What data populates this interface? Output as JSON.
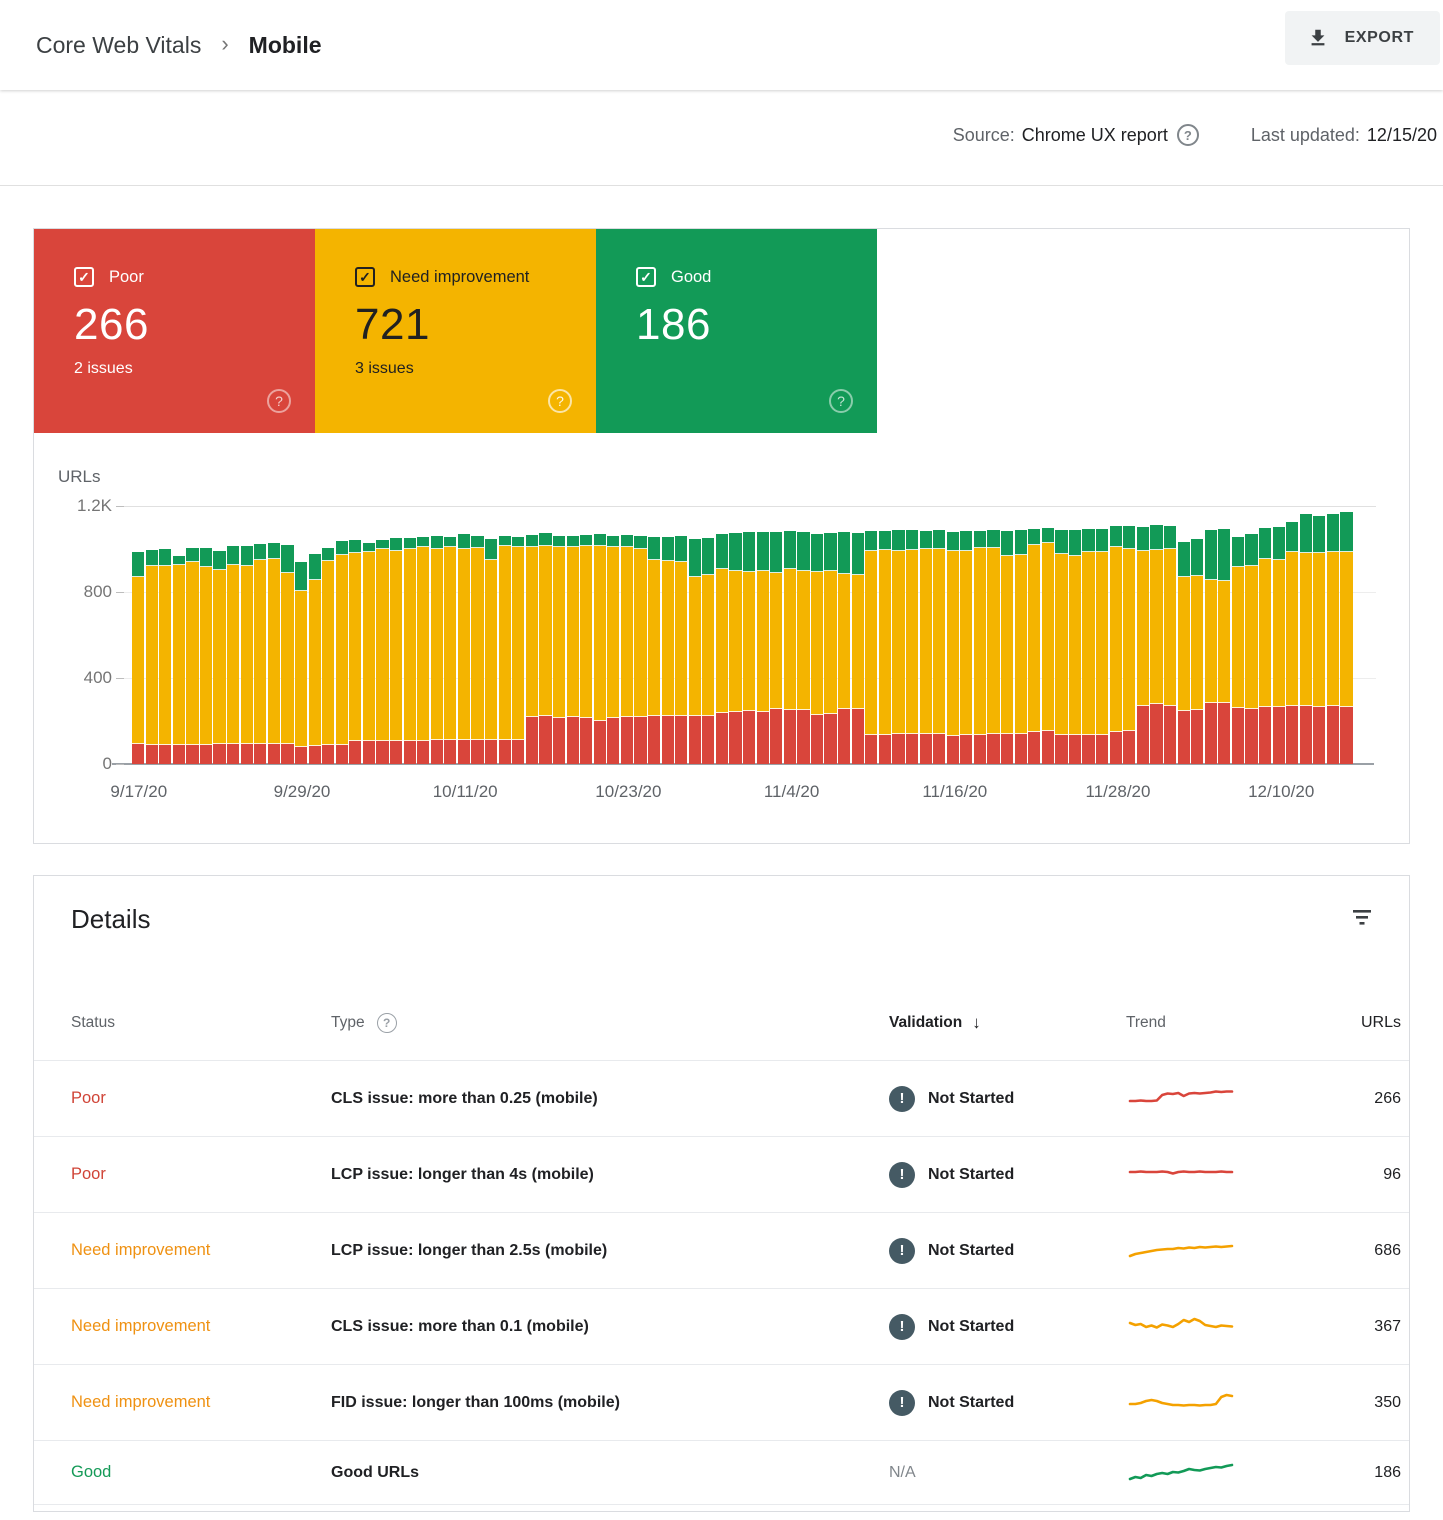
{
  "header": {
    "breadcrumb_root": "Core Web Vitals",
    "breadcrumb_separator": "›",
    "breadcrumb_current": "Mobile",
    "export_label": "EXPORT"
  },
  "meta": {
    "source_label": "Source:",
    "source_value": "Chrome UX report",
    "last_updated_label": "Last updated:",
    "last_updated_value": "12/15/20"
  },
  "summary_cards": [
    {
      "id": "poor",
      "label": "Poor",
      "count": "266",
      "issues": "2 issues",
      "checkbox": "✓",
      "help": "?",
      "color": "#d9453b",
      "text_color": "#ffffff"
    },
    {
      "id": "need_improvement",
      "label": "Need improvement",
      "count": "721",
      "issues": "3 issues",
      "checkbox": "✓",
      "help": "?",
      "color": "#f4b400",
      "text_color": "#212121"
    },
    {
      "id": "good",
      "label": "Good",
      "count": "186",
      "issues": "",
      "checkbox": "✓",
      "help": "?",
      "color": "#129a57",
      "text_color": "#ffffff"
    }
  ],
  "chart_data": {
    "type": "bar",
    "stacked": true,
    "ylabel": "URLs",
    "ylim": [
      0,
      1200
    ],
    "yticks": [
      "1.2K",
      "800",
      "400",
      "0"
    ],
    "grid": true,
    "x_tick_labels": [
      "9/17/20",
      "9/29/20",
      "10/11/20",
      "10/23/20",
      "11/4/20",
      "11/16/20",
      "11/28/20",
      "12/10/20"
    ],
    "x_tick_every": 12,
    "series_order": [
      "poor",
      "need_improvement",
      "good"
    ],
    "colors": {
      "poor": "#d9453b",
      "need_improvement": "#f4b400",
      "good": "#129a57"
    },
    "bars": [
      [
        92,
        777,
        117
      ],
      [
        90,
        830,
        74
      ],
      [
        90,
        830,
        80
      ],
      [
        88,
        837,
        44
      ],
      [
        90,
        850,
        65
      ],
      [
        90,
        825,
        90
      ],
      [
        92,
        809,
        88
      ],
      [
        92,
        833,
        87
      ],
      [
        95,
        825,
        95
      ],
      [
        95,
        855,
        75
      ],
      [
        95,
        860,
        75
      ],
      [
        95,
        795,
        130
      ],
      [
        78,
        727,
        135
      ],
      [
        82,
        773,
        120
      ],
      [
        90,
        855,
        60
      ],
      [
        90,
        880,
        65
      ],
      [
        105,
        875,
        60
      ],
      [
        105,
        880,
        45
      ],
      [
        105,
        895,
        40
      ],
      [
        105,
        885,
        60
      ],
      [
        105,
        895,
        50
      ],
      [
        105,
        905,
        45
      ],
      [
        110,
        890,
        60
      ],
      [
        110,
        900,
        45
      ],
      [
        110,
        890,
        70
      ],
      [
        112,
        893,
        57
      ],
      [
        112,
        838,
        95
      ],
      [
        112,
        903,
        45
      ],
      [
        112,
        898,
        48
      ],
      [
        220,
        790,
        55
      ],
      [
        222,
        793,
        60
      ],
      [
        215,
        793,
        52
      ],
      [
        218,
        792,
        52
      ],
      [
        215,
        797,
        53
      ],
      [
        200,
        815,
        53
      ],
      [
        212,
        798,
        52
      ],
      [
        220,
        788,
        57
      ],
      [
        220,
        780,
        60
      ],
      [
        222,
        728,
        105
      ],
      [
        222,
        723,
        113
      ],
      [
        225,
        715,
        120
      ],
      [
        222,
        648,
        178
      ],
      [
        225,
        655,
        170
      ],
      [
        238,
        667,
        167
      ],
      [
        240,
        660,
        175
      ],
      [
        245,
        650,
        185
      ],
      [
        242,
        658,
        178
      ],
      [
        255,
        635,
        190
      ],
      [
        250,
        655,
        177
      ],
      [
        252,
        648,
        180
      ],
      [
        230,
        665,
        177
      ],
      [
        232,
        668,
        175
      ],
      [
        255,
        630,
        193
      ],
      [
        258,
        622,
        195
      ],
      [
        135,
        855,
        92
      ],
      [
        135,
        860,
        90
      ],
      [
        138,
        852,
        98
      ],
      [
        138,
        857,
        95
      ],
      [
        140,
        860,
        85
      ],
      [
        140,
        862,
        86
      ],
      [
        130,
        860,
        90
      ],
      [
        135,
        857,
        90
      ],
      [
        135,
        870,
        80
      ],
      [
        138,
        867,
        83
      ],
      [
        138,
        830,
        117
      ],
      [
        140,
        832,
        116
      ],
      [
        148,
        872,
        72
      ],
      [
        152,
        878,
        70
      ],
      [
        135,
        840,
        115
      ],
      [
        135,
        835,
        118
      ],
      [
        135,
        850,
        107
      ],
      [
        135,
        850,
        110
      ],
      [
        150,
        860,
        95
      ],
      [
        155,
        845,
        108
      ],
      [
        270,
        720,
        115
      ],
      [
        278,
        717,
        115
      ],
      [
        272,
        726,
        110
      ],
      [
        248,
        622,
        165
      ],
      [
        252,
        623,
        170
      ],
      [
        285,
        570,
        235
      ],
      [
        285,
        567,
        240
      ],
      [
        262,
        656,
        140
      ],
      [
        258,
        662,
        148
      ],
      [
        265,
        690,
        143
      ],
      [
        265,
        685,
        150
      ],
      [
        272,
        713,
        140
      ],
      [
        268,
        712,
        185
      ],
      [
        265,
        715,
        175
      ],
      [
        268,
        717,
        180
      ],
      [
        266,
        721,
        186
      ]
    ]
  },
  "details": {
    "title": "Details",
    "columns": {
      "status": "Status",
      "type": "Type",
      "type_help": "?",
      "validation": "Validation",
      "sort_arrow": "↓",
      "trend": "Trend",
      "urls": "URLs"
    },
    "status_colors": {
      "poor": "#d04437",
      "ni": "#ef9112",
      "good": "#149a57"
    },
    "validation_icon_color": "#455a64",
    "validation_icon_glyph": "!",
    "rows": [
      {
        "status": "Poor",
        "severity": "poor",
        "type": "CLS issue: more than 0.25 (mobile)",
        "validation": "Not Started",
        "urls": "266",
        "trend_color": "#d9453b",
        "trend": [
          18,
          18,
          19,
          18,
          18,
          19,
          30,
          33,
          32,
          34,
          28,
          33,
          34,
          33,
          34,
          35,
          37,
          36,
          37,
          37
        ]
      },
      {
        "status": "Poor",
        "severity": "poor",
        "type": "LCP issue: longer than 4s (mobile)",
        "validation": "Not Started",
        "urls": "96",
        "trend_color": "#d9453b",
        "trend": [
          28,
          28,
          29,
          28,
          28,
          28,
          29,
          28,
          25,
          28,
          29,
          28,
          28,
          29,
          28,
          28,
          28,
          29,
          28,
          28
        ]
      },
      {
        "status": "Need improvement",
        "severity": "ni",
        "type": "LCP issue: longer than 2.5s (mobile)",
        "validation": "Not Started",
        "urls": "686",
        "trend_color": "#f4a100",
        "trend": [
          12,
          16,
          18,
          20,
          22,
          24,
          25,
          26,
          26,
          28,
          27,
          29,
          28,
          30,
          29,
          30,
          31,
          30,
          31,
          32
        ]
      },
      {
        "status": "Need improvement",
        "severity": "ni",
        "type": "CLS issue: more than 0.1 (mobile)",
        "validation": "Not Started",
        "urls": "367",
        "trend_color": "#f4a100",
        "trend": [
          30,
          26,
          28,
          22,
          25,
          21,
          27,
          25,
          22,
          28,
          36,
          32,
          38,
          34,
          26,
          24,
          22,
          25,
          24,
          23
        ]
      },
      {
        "status": "Need improvement",
        "severity": "ni",
        "type": "FID issue: longer than 100ms (mobile)",
        "validation": "Not Started",
        "urls": "350",
        "trend_color": "#f4a100",
        "trend": [
          20,
          20,
          22,
          26,
          28,
          26,
          22,
          20,
          18,
          18,
          17,
          18,
          18,
          17,
          18,
          18,
          20,
          34,
          38,
          36
        ]
      },
      {
        "status": "Good",
        "severity": "good",
        "type": "Good URLs",
        "validation": "N/A",
        "urls": "186",
        "trend_color": "#129a57",
        "trend": [
          10,
          14,
          12,
          18,
          16,
          20,
          22,
          20,
          24,
          23,
          26,
          30,
          28,
          27,
          30,
          32,
          34,
          33,
          36,
          38
        ]
      }
    ]
  }
}
